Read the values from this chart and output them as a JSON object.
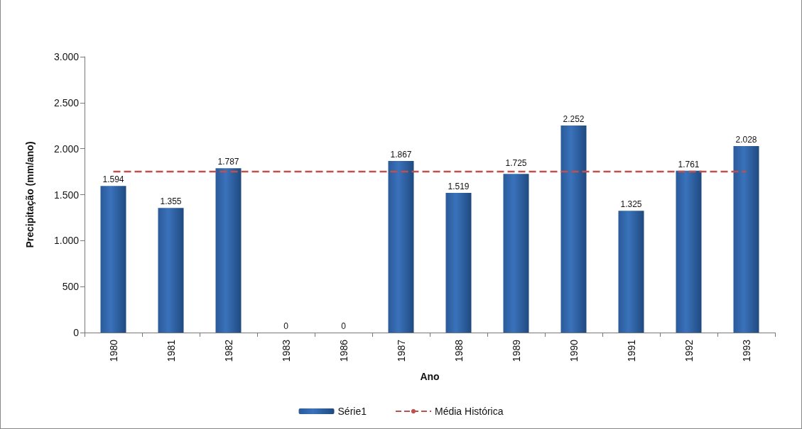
{
  "chart_data": {
    "type": "bar",
    "xlabel": "Ano",
    "ylabel": "Precipitação (mm/ano)",
    "categories": [
      "1980",
      "1981",
      "1982",
      "1983",
      "1986",
      "1987",
      "1988",
      "1989",
      "1990",
      "1991",
      "1992",
      "1993"
    ],
    "series": [
      {
        "name": "Série1",
        "color": "#3a72bb",
        "values": [
          1594,
          1355,
          1787,
          0,
          0,
          1867,
          1519,
          1725,
          2252,
          1325,
          1761,
          2028
        ],
        "value_labels": [
          "1.594",
          "1.355",
          "1.787",
          "0",
          "0",
          "1.867",
          "1.519",
          "1.725",
          "2.252",
          "1.325",
          "1.761",
          "2.028"
        ]
      },
      {
        "name": "Média Histórica",
        "type": "line",
        "color": "#c0504d",
        "line_style": "dashed",
        "marker": "none",
        "values": [
          1750,
          1750,
          1750,
          1750,
          1750,
          1750,
          1750,
          1750,
          1750,
          1750,
          1750,
          1750
        ]
      }
    ],
    "ylim": [
      0,
      3000
    ],
    "yticks": [
      {
        "value": 0,
        "label": "0"
      },
      {
        "value": 500,
        "label": "500"
      },
      {
        "value": 1000,
        "label": "1.000"
      },
      {
        "value": 1500,
        "label": "1.500"
      },
      {
        "value": 2000,
        "label": "2.000"
      },
      {
        "value": 2500,
        "label": "2.500"
      },
      {
        "value": 3000,
        "label": "3.000"
      }
    ],
    "grid": false,
    "legend": "bottom"
  }
}
